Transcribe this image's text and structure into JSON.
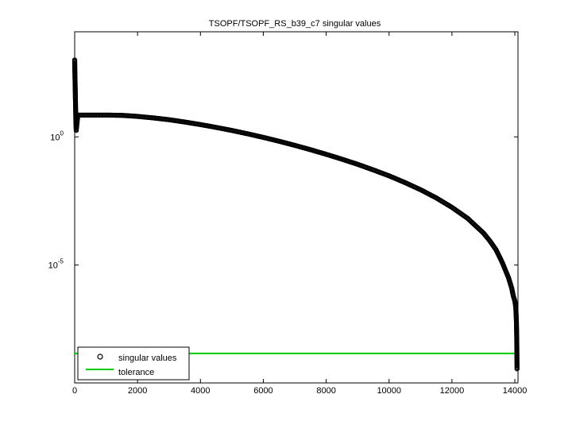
{
  "chart_data": {
    "type": "scatter",
    "title": "TSOPF/TSOPF_RS_b39_c7 singular values",
    "xlabel": "",
    "ylabel": "",
    "xlim": [
      0,
      14100
    ],
    "ylim_log10": [
      -9.6,
      4.1
    ],
    "y_scale": "log",
    "x_ticks": [
      {
        "value": 0,
        "label": "0"
      },
      {
        "value": 2000,
        "label": "2000"
      },
      {
        "value": 4000,
        "label": "4000"
      },
      {
        "value": 6000,
        "label": "6000"
      },
      {
        "value": 8000,
        "label": "8000"
      },
      {
        "value": 10000,
        "label": "10000"
      },
      {
        "value": 12000,
        "label": "12000"
      },
      {
        "value": 14000,
        "label": "14000"
      }
    ],
    "y_ticks": [
      {
        "log10": 0,
        "base": "10",
        "exp": "0"
      },
      {
        "log10": -5,
        "base": "10",
        "exp": "-5"
      }
    ],
    "grid": false,
    "legend_position": "bottom-left",
    "series": [
      {
        "name": "singular values",
        "marker": "circle",
        "color": "#000000",
        "points": [
          [
            0,
            3.0
          ],
          [
            5,
            2.6
          ],
          [
            10,
            2.3
          ],
          [
            15,
            2.0
          ],
          [
            20,
            1.7
          ],
          [
            25,
            1.4
          ],
          [
            30,
            1.1
          ],
          [
            35,
            0.8
          ],
          [
            40,
            0.5
          ],
          [
            50,
            0.25
          ],
          [
            100,
            0.85
          ],
          [
            500,
            0.85
          ],
          [
            1000,
            0.85
          ],
          [
            1500,
            0.84
          ],
          [
            2000,
            0.8
          ],
          [
            2500,
            0.74
          ],
          [
            3000,
            0.67
          ],
          [
            3500,
            0.58
          ],
          [
            4000,
            0.48
          ],
          [
            4500,
            0.37
          ],
          [
            5000,
            0.25
          ],
          [
            5500,
            0.12
          ],
          [
            6000,
            -0.02
          ],
          [
            6500,
            -0.17
          ],
          [
            7000,
            -0.33
          ],
          [
            7500,
            -0.5
          ],
          [
            8000,
            -0.68
          ],
          [
            8500,
            -0.87
          ],
          [
            9000,
            -1.07
          ],
          [
            9500,
            -1.29
          ],
          [
            10000,
            -1.52
          ],
          [
            10500,
            -1.78
          ],
          [
            11000,
            -2.06
          ],
          [
            11500,
            -2.38
          ],
          [
            12000,
            -2.75
          ],
          [
            12500,
            -3.18
          ],
          [
            13000,
            -3.75
          ],
          [
            13200,
            -4.05
          ],
          [
            13400,
            -4.4
          ],
          [
            13600,
            -4.9
          ],
          [
            13800,
            -5.5
          ],
          [
            13900,
            -5.9
          ],
          [
            13950,
            -6.2
          ],
          [
            14000,
            -6.4
          ],
          [
            14030,
            -6.65
          ],
          [
            14040,
            -6.9
          ],
          [
            14050,
            -7.2
          ],
          [
            14055,
            -7.5
          ],
          [
            14060,
            -7.8
          ],
          [
            14065,
            -8.4
          ],
          [
            14070,
            -9.05
          ]
        ]
      },
      {
        "name": "tolerance",
        "marker": "line",
        "color": "#00cc00",
        "value_log10": -8.45
      }
    ]
  }
}
